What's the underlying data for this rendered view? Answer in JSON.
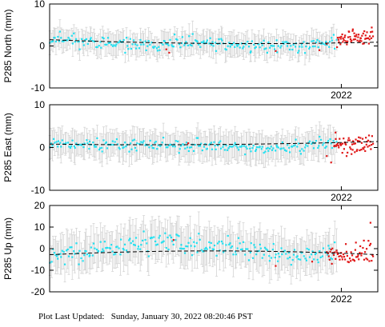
{
  "footer": {
    "label": "Plot Last Updated:",
    "timestamp": "Sunday, January 30, 2022 08:20:46 PST"
  },
  "colors": {
    "data_points": "#22e0f0",
    "rapid_points": "#e01818",
    "error_bars": "#d4d4d4",
    "trend_line": "#000000",
    "frame": "#000000"
  },
  "chart_data": [
    {
      "type": "scatter",
      "ylabel": "P285 North (mm)",
      "ylim": [
        -10,
        10
      ],
      "yticks": [
        -10,
        0,
        10
      ],
      "xlim": [
        2020.0,
        2022.25
      ],
      "xticks": [
        {
          "value": 2022.0,
          "label": "2022"
        }
      ],
      "trend": {
        "x": [
          2020.0,
          2022.25
        ],
        "y": [
          1.5,
          0.9
        ],
        "curvature": -2.4
      },
      "series": [
        {
          "style": "final",
          "seed": 11,
          "x_range": [
            2020.0,
            2021.97
          ],
          "y_anchors": [
            [
              2020.0,
              2.0
            ],
            [
              2020.3,
              1.0
            ],
            [
              2020.6,
              0.0
            ],
            [
              2021.0,
              0.8
            ],
            [
              2021.4,
              0.0
            ],
            [
              2021.7,
              -0.2
            ],
            [
              2021.97,
              1.2
            ]
          ],
          "noise": 1.2,
          "error": 2.5
        },
        {
          "style": "rapid",
          "seed": 12,
          "x_range": [
            2021.97,
            2022.22
          ],
          "y_anchors": [
            [
              2021.97,
              1.5
            ],
            [
              2022.22,
              2.5
            ]
          ],
          "noise": 1.4,
          "error": 0
        },
        {
          "style": "rapid_sparse",
          "points": [
            [
              2020.8,
              -0.8
            ],
            [
              2020.82,
              -1.6
            ],
            [
              2021.55,
              -1.2
            ],
            [
              2021.85,
              -1.0
            ],
            [
              2021.9,
              0.5
            ]
          ]
        }
      ]
    },
    {
      "type": "scatter",
      "ylabel": "P285 East (mm)",
      "ylim": [
        -10,
        10
      ],
      "yticks": [
        -10,
        0,
        10
      ],
      "xlim": [
        2020.0,
        2022.25
      ],
      "xticks": [
        {
          "value": 2022.0,
          "label": "2022"
        }
      ],
      "trend": {
        "x": [
          2020.0,
          2022.25
        ],
        "y": [
          0.8,
          1.4
        ],
        "curvature": -1.6
      },
      "series": [
        {
          "style": "final",
          "seed": 21,
          "x_range": [
            2020.0,
            2021.97
          ],
          "y_anchors": [
            [
              2020.0,
              1.0
            ],
            [
              2020.5,
              0.5
            ],
            [
              2021.0,
              0.6
            ],
            [
              2021.5,
              -0.3
            ],
            [
              2021.97,
              1.0
            ]
          ],
          "noise": 1.1,
          "error": 3.0
        },
        {
          "style": "rapid",
          "seed": 22,
          "x_range": [
            2021.95,
            2022.22
          ],
          "y_anchors": [
            [
              2021.95,
              0.0
            ],
            [
              2022.22,
              1.5
            ]
          ],
          "noise": 1.6,
          "error": 0
        },
        {
          "style": "rapid_sparse",
          "points": [
            [
              2020.95,
              1.0
            ],
            [
              2021.9,
              -2.0
            ],
            [
              2021.93,
              -3.5
            ],
            [
              2021.96,
              3.5
            ]
          ]
        }
      ]
    },
    {
      "type": "scatter",
      "ylabel": "P285 Up (mm)",
      "ylim": [
        -20,
        20
      ],
      "yticks": [
        -20,
        -10,
        0,
        10,
        20
      ],
      "xlim": [
        2020.0,
        2022.25
      ],
      "xticks": [
        {
          "value": 2022.0,
          "label": "2022"
        }
      ],
      "trend": {
        "x": [
          2020.0,
          2022.25
        ],
        "y": [
          -2.8,
          -2.8
        ],
        "curvature": 7.0
      },
      "series": [
        {
          "style": "final",
          "seed": 31,
          "x_range": [
            2020.0,
            2021.97
          ],
          "y_anchors": [
            [
              2020.0,
              -4.0
            ],
            [
              2020.4,
              0.0
            ],
            [
              2020.8,
              4.0
            ],
            [
              2021.2,
              1.0
            ],
            [
              2021.6,
              -3.0
            ],
            [
              2021.97,
              -2.0
            ]
          ],
          "noise": 3.6,
          "error": 8.0
        },
        {
          "style": "rapid",
          "seed": 32,
          "x_range": [
            2021.9,
            2022.22
          ],
          "y_anchors": [
            [
              2021.9,
              -3.0
            ],
            [
              2022.22,
              -1.0
            ]
          ],
          "noise": 4.2,
          "error": 0
        },
        {
          "style": "rapid_sparse",
          "points": [
            [
              2020.85,
              4.0
            ],
            [
              2021.55,
              -8.0
            ],
            [
              2021.8,
              -6.0
            ],
            [
              2022.2,
              12.0
            ]
          ]
        }
      ]
    }
  ]
}
